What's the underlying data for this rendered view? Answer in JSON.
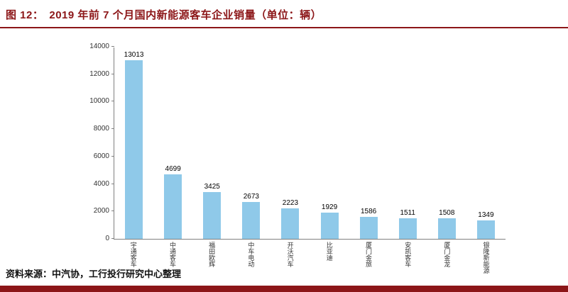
{
  "header": {
    "figure_label": "图 12：",
    "title": "2019 年前 7 个月国内新能源客车企业销量（单位：辆）"
  },
  "footer": {
    "source_label": "资料来源：",
    "source_text": "中汽协，工行投行研究中心整理"
  },
  "colors": {
    "accent": "#8C1618",
    "bar": "#8FC9E9",
    "axis": "#808080"
  },
  "chart_data": {
    "type": "bar",
    "title": "2019 年前 7 个月国内新能源客车企业销量（单位：辆）",
    "categories": [
      "宇通客车",
      "中通客车",
      "福田欧辉",
      "中车电动",
      "开沃汽车",
      "比亚迪",
      "厦门金旅",
      "安凯客车",
      "厦门金龙",
      "银隆新能源"
    ],
    "values": [
      13013,
      4699,
      3425,
      2673,
      2223,
      1929,
      1586,
      1511,
      1508,
      1349
    ],
    "xlabel": "",
    "ylabel": "",
    "ylim": [
      0,
      14000
    ],
    "yticks": [
      0,
      2000,
      4000,
      6000,
      8000,
      10000,
      12000,
      14000
    ],
    "grid": false,
    "legend": "none",
    "data_labels": true
  }
}
